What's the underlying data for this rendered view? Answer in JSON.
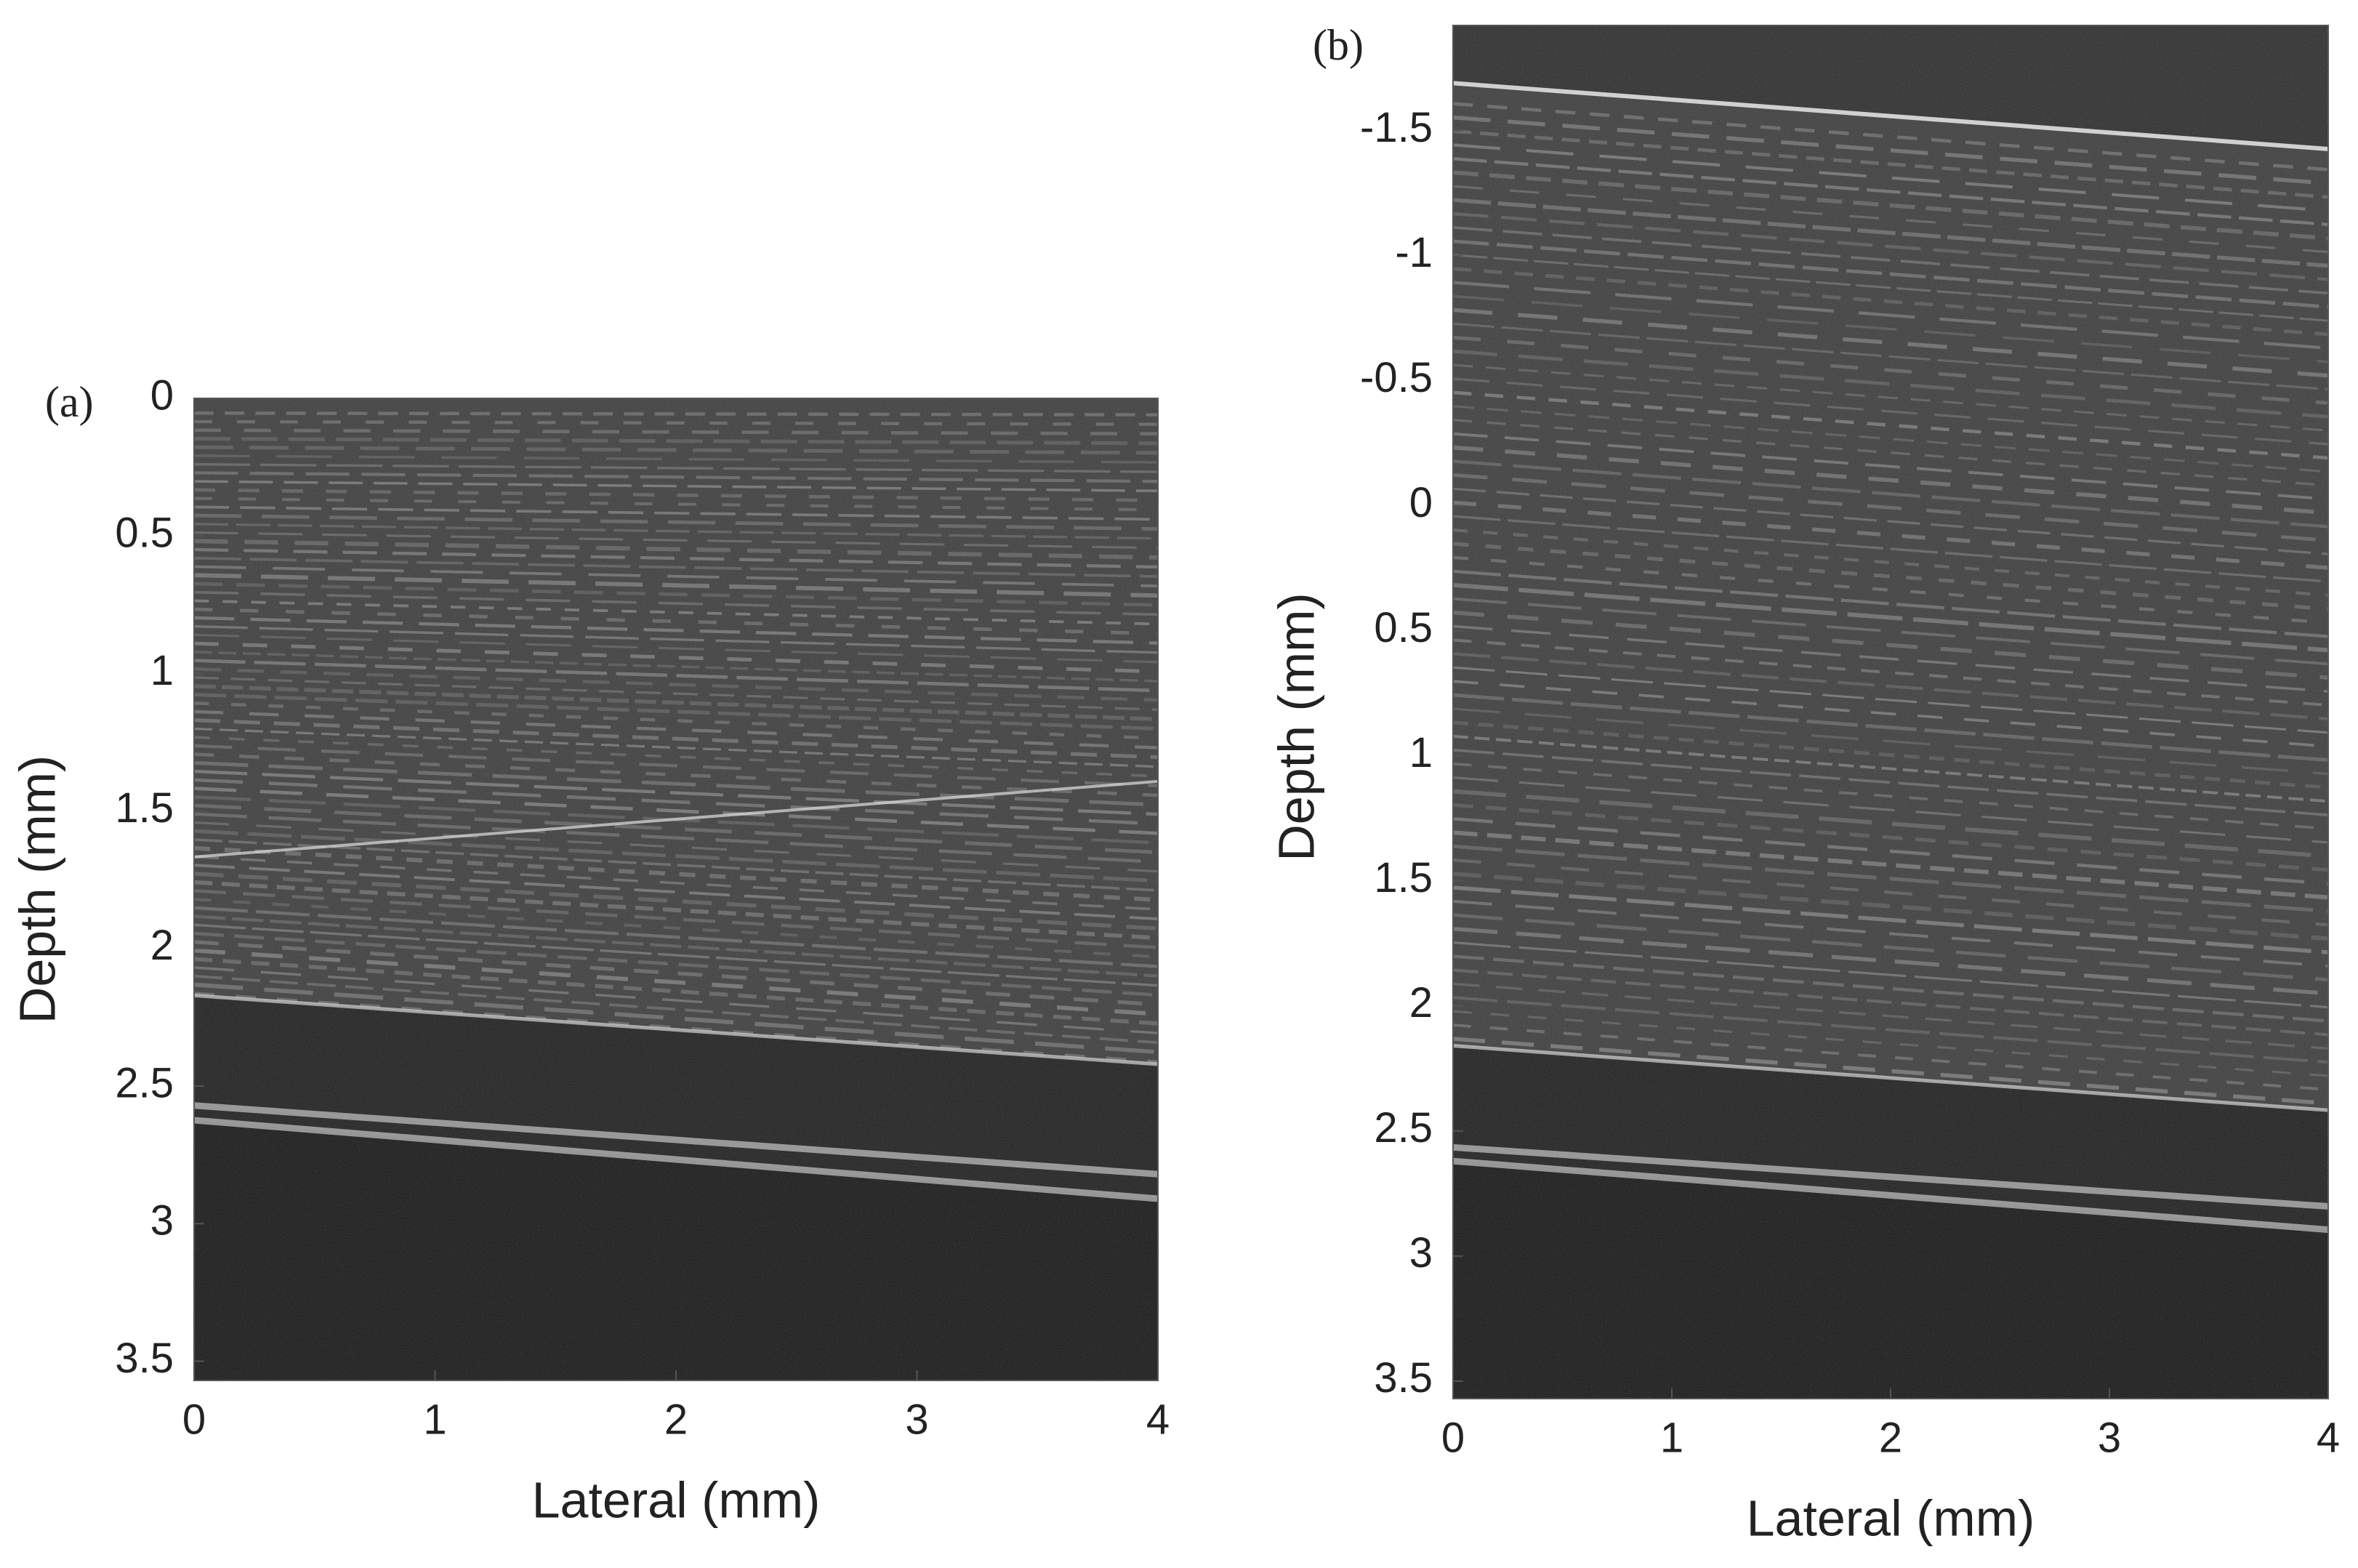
{
  "chart_data": [
    {
      "type": "image",
      "panel_label": "(a)",
      "xlabel": "Lateral (mm)",
      "ylabel": "Depth (mm)",
      "xlim": [
        0,
        4
      ],
      "ylim": [
        0,
        3.57
      ],
      "yinvert": true,
      "xticks": [
        0,
        1,
        2,
        3,
        4
      ],
      "yticks": [
        0,
        0.5,
        1,
        1.5,
        2,
        2.5,
        3,
        3.5
      ]
    },
    {
      "type": "image",
      "panel_label": "(b)",
      "xlabel": "Lateral (mm)",
      "ylabel": "Depth (mm)",
      "xlim": [
        0,
        4
      ],
      "ylim": [
        -1.92,
        3.57
      ],
      "yinvert": true,
      "xticks": [
        0,
        1,
        2,
        3,
        4
      ],
      "yticks": [
        -1.5,
        -1,
        -0.5,
        0,
        0.5,
        1,
        1.5,
        2,
        2.5,
        3,
        3.5
      ]
    }
  ]
}
